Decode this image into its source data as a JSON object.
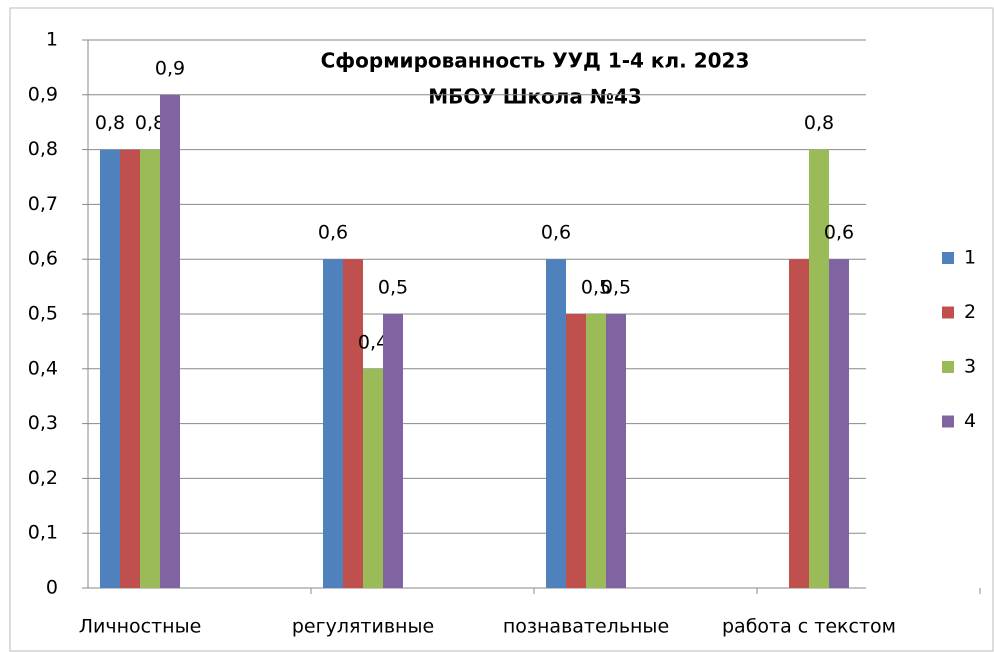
{
  "chart_data": {
    "type": "bar",
    "title": "Сформированность УУД 1-4 кл. 2023",
    "subtitle": "МБОУ Школа №43",
    "categories": [
      "Личностные",
      "регулятивные",
      "познавательные",
      "работа с текстом"
    ],
    "series": [
      {
        "name": "1",
        "color": "#4f81bd",
        "values": [
          0.8,
          0.6,
          0.6,
          null
        ],
        "value_labels": [
          "0,8",
          "0,6",
          "0,6",
          null
        ]
      },
      {
        "name": "2",
        "color": "#c0504d",
        "values": [
          0.8,
          0.6,
          0.5,
          0.6
        ]
      },
      {
        "name": "3",
        "color": "#9bbb59",
        "values": [
          0.8,
          0.4,
          0.5,
          0.8
        ],
        "value_labels": [
          "0,8",
          "0,4",
          "0,5",
          "0,8"
        ]
      },
      {
        "name": "4",
        "color": "#8064a2",
        "values": [
          0.9,
          0.5,
          0.5,
          0.6
        ],
        "value_labels": [
          "0,9",
          "0,5",
          "0,5",
          "0,6"
        ]
      }
    ],
    "ylim": [
      0,
      1
    ],
    "yticks": [
      0,
      {
        "value": 0.1,
        "label": "0,1"
      },
      {
        "value": 0.2,
        "label": "0,2"
      },
      {
        "value": 0.3,
        "label": "0,3"
      },
      {
        "value": 0.4,
        "label": "0,4"
      },
      {
        "value": 0.5,
        "label": "0,5"
      },
      {
        "value": 0.6,
        "label": "0,6"
      },
      {
        "value": 0.7,
        "label": "0,7"
      },
      {
        "value": 0.8,
        "label": "0,8"
      },
      {
        "value": 0.9,
        "label": "0,9"
      },
      1
    ],
    "grid": true,
    "legend": "right"
  }
}
